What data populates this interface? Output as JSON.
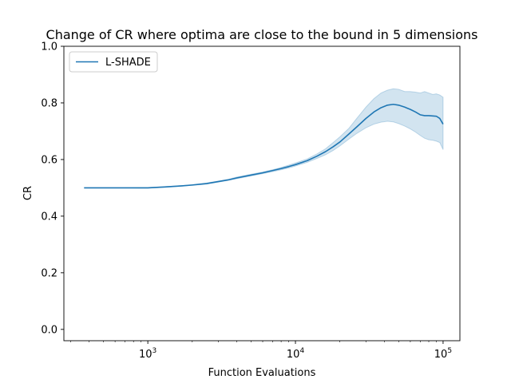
{
  "chart_data": {
    "type": "line",
    "title": "Change of CR where optima are close to the bound in 5 dimensions",
    "xlabel": "Function Evaluations",
    "ylabel": "CR",
    "xscale": "log",
    "xlim": [
      270,
      130000
    ],
    "ylim": [
      -0.04,
      1.0
    ],
    "xticks": [
      {
        "value": 1000,
        "base": "10",
        "exp": "3"
      },
      {
        "value": 10000,
        "base": "10",
        "exp": "4"
      },
      {
        "value": 100000,
        "base": "10",
        "exp": "5"
      }
    ],
    "yticks": [
      0.0,
      0.2,
      0.4,
      0.6,
      0.8,
      1.0
    ],
    "grid": false,
    "legend_position": "top-left",
    "series": [
      {
        "name": "L-SHADE",
        "color": "#1f77b4",
        "band_color": "#1f77b4",
        "x": [
          370,
          500,
          700,
          900,
          1000,
          1300,
          1700,
          2000,
          2500,
          3000,
          3500,
          4000,
          5000,
          6000,
          7000,
          8000,
          9000,
          10000,
          12000,
          14000,
          16000,
          18000,
          20000,
          23000,
          26000,
          30000,
          34000,
          38000,
          42000,
          46000,
          50000,
          55000,
          60000,
          65000,
          70000,
          75000,
          80000,
          85000,
          90000,
          95000,
          100000
        ],
        "y": [
          0.5,
          0.5,
          0.5,
          0.5,
          0.5,
          0.503,
          0.507,
          0.51,
          0.515,
          0.522,
          0.528,
          0.535,
          0.545,
          0.553,
          0.561,
          0.568,
          0.575,
          0.582,
          0.596,
          0.612,
          0.628,
          0.645,
          0.662,
          0.69,
          0.715,
          0.745,
          0.768,
          0.783,
          0.792,
          0.795,
          0.792,
          0.785,
          0.777,
          0.768,
          0.758,
          0.755,
          0.755,
          0.754,
          0.753,
          0.745,
          0.725
        ],
        "lower": [
          0.5,
          0.5,
          0.5,
          0.499,
          0.499,
          0.502,
          0.506,
          0.509,
          0.513,
          0.52,
          0.526,
          0.532,
          0.542,
          0.55,
          0.557,
          0.564,
          0.57,
          0.577,
          0.59,
          0.604,
          0.617,
          0.632,
          0.648,
          0.672,
          0.692,
          0.712,
          0.725,
          0.732,
          0.735,
          0.733,
          0.727,
          0.718,
          0.708,
          0.697,
          0.685,
          0.675,
          0.67,
          0.668,
          0.665,
          0.66,
          0.635
        ],
        "upper": [
          0.5,
          0.5,
          0.5,
          0.501,
          0.501,
          0.504,
          0.508,
          0.511,
          0.517,
          0.524,
          0.53,
          0.538,
          0.548,
          0.556,
          0.564,
          0.572,
          0.58,
          0.588,
          0.602,
          0.62,
          0.638,
          0.66,
          0.68,
          0.71,
          0.745,
          0.785,
          0.815,
          0.835,
          0.845,
          0.85,
          0.848,
          0.84,
          0.84,
          0.838,
          0.835,
          0.84,
          0.835,
          0.83,
          0.832,
          0.828,
          0.82
        ]
      }
    ]
  }
}
